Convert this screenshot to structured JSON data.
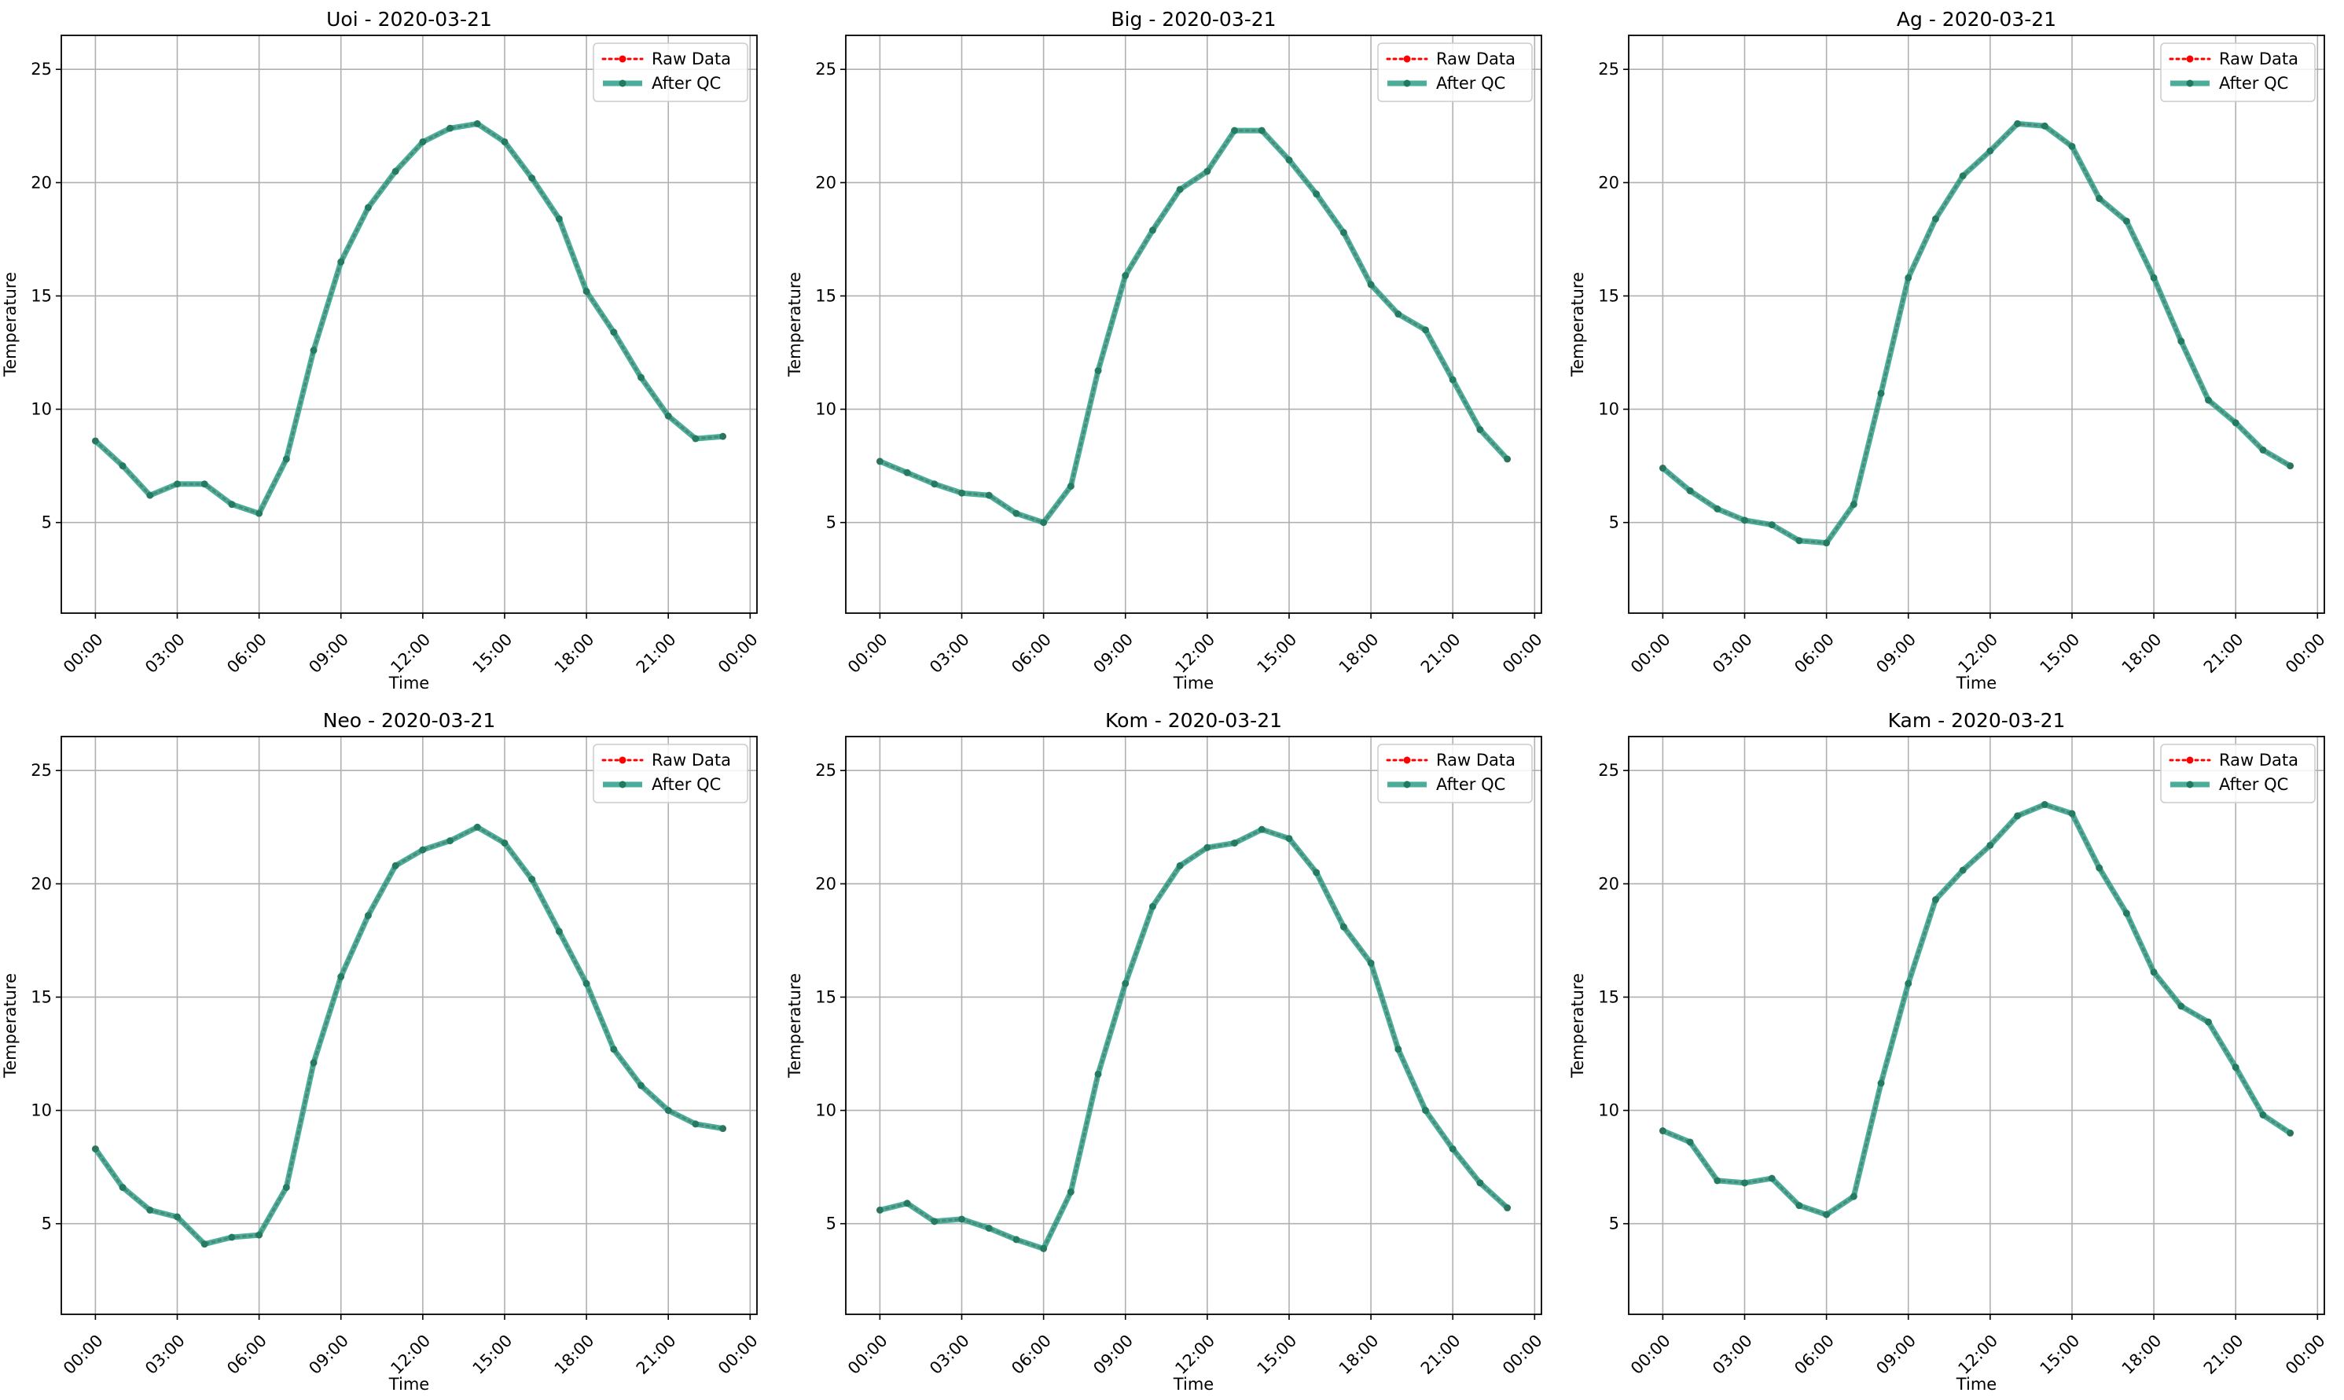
{
  "chart_data": [
    {
      "type": "line",
      "title": "Uoi - 2020-03-21",
      "xlabel": "Time",
      "ylabel": "Temperature",
      "date": "2020-03-21",
      "xticks": [
        "00:00",
        "03:00",
        "06:00",
        "09:00",
        "12:00",
        "15:00",
        "18:00",
        "21:00",
        "00:00"
      ],
      "xlim": [
        "2020-03-20T22:45",
        "2020-03-22T00:15"
      ],
      "yticks": [
        5,
        10,
        15,
        20,
        25
      ],
      "ylim": [
        1,
        26.5
      ],
      "grid": true,
      "legend_position": "top-right",
      "x": [
        "00:00",
        "01:00",
        "02:00",
        "03:00",
        "04:00",
        "05:00",
        "06:00",
        "07:00",
        "08:00",
        "09:00",
        "10:00",
        "11:00",
        "12:00",
        "13:00",
        "14:00",
        "15:00",
        "16:00",
        "17:00",
        "18:00",
        "19:00",
        "20:00",
        "21:00",
        "22:00",
        "23:00"
      ],
      "series": [
        {
          "name": "Raw Data",
          "color": "#ff0000",
          "style": "dotted",
          "values": [
            8.6,
            7.5,
            6.2,
            6.7,
            6.7,
            5.8,
            5.4,
            7.8,
            12.6,
            16.5,
            18.9,
            20.5,
            21.8,
            22.4,
            22.6,
            21.8,
            20.2,
            18.4,
            15.2,
            13.4,
            11.4,
            9.7,
            8.7,
            8.8
          ]
        },
        {
          "name": "After QC",
          "color": "#2ca089",
          "style": "solid",
          "values": [
            8.6,
            7.5,
            6.2,
            6.7,
            6.7,
            5.8,
            5.4,
            7.8,
            12.6,
            16.5,
            18.9,
            20.5,
            21.8,
            22.4,
            22.6,
            21.8,
            20.2,
            18.4,
            15.2,
            13.4,
            11.4,
            9.7,
            8.7,
            8.8
          ]
        }
      ]
    },
    {
      "type": "line",
      "title": "Big - 2020-03-21",
      "xlabel": "Time",
      "ylabel": "Temperature",
      "date": "2020-03-21",
      "xticks": [
        "00:00",
        "03:00",
        "06:00",
        "09:00",
        "12:00",
        "15:00",
        "18:00",
        "21:00",
        "00:00"
      ],
      "xlim": [
        "2020-03-20T22:45",
        "2020-03-22T00:15"
      ],
      "yticks": [
        5,
        10,
        15,
        20,
        25
      ],
      "ylim": [
        1,
        26.5
      ],
      "grid": true,
      "legend_position": "top-right",
      "x": [
        "00:00",
        "01:00",
        "02:00",
        "03:00",
        "04:00",
        "05:00",
        "06:00",
        "07:00",
        "08:00",
        "09:00",
        "10:00",
        "11:00",
        "12:00",
        "13:00",
        "14:00",
        "15:00",
        "16:00",
        "17:00",
        "18:00",
        "19:00",
        "20:00",
        "21:00",
        "22:00",
        "23:00"
      ],
      "series": [
        {
          "name": "Raw Data",
          "color": "#ff0000",
          "style": "dotted",
          "values": [
            7.7,
            7.2,
            6.7,
            6.3,
            6.2,
            5.4,
            5.0,
            6.6,
            11.7,
            15.9,
            17.9,
            19.7,
            20.5,
            22.3,
            22.3,
            21.0,
            19.5,
            17.8,
            15.5,
            14.2,
            13.5,
            11.3,
            9.1,
            7.8
          ]
        },
        {
          "name": "After QC",
          "color": "#2ca089",
          "style": "solid",
          "values": [
            7.7,
            7.2,
            6.7,
            6.3,
            6.2,
            5.4,
            5.0,
            6.6,
            11.7,
            15.9,
            17.9,
            19.7,
            20.5,
            22.3,
            22.3,
            21.0,
            19.5,
            17.8,
            15.5,
            14.2,
            13.5,
            11.3,
            9.1,
            7.8
          ]
        }
      ]
    },
    {
      "type": "line",
      "title": "Ag - 2020-03-21",
      "xlabel": "Time",
      "ylabel": "Temperature",
      "date": "2020-03-21",
      "xticks": [
        "00:00",
        "03:00",
        "06:00",
        "09:00",
        "12:00",
        "15:00",
        "18:00",
        "21:00",
        "00:00"
      ],
      "xlim": [
        "2020-03-20T22:45",
        "2020-03-22T00:15"
      ],
      "yticks": [
        5,
        10,
        15,
        20,
        25
      ],
      "ylim": [
        1,
        26.5
      ],
      "grid": true,
      "legend_position": "top-right",
      "x": [
        "00:00",
        "01:00",
        "02:00",
        "03:00",
        "04:00",
        "05:00",
        "06:00",
        "07:00",
        "08:00",
        "09:00",
        "10:00",
        "11:00",
        "12:00",
        "13:00",
        "14:00",
        "15:00",
        "16:00",
        "17:00",
        "18:00",
        "19:00",
        "20:00",
        "21:00",
        "22:00",
        "23:00"
      ],
      "series": [
        {
          "name": "Raw Data",
          "color": "#ff0000",
          "style": "dotted",
          "values": [
            7.4,
            6.4,
            5.6,
            5.1,
            4.9,
            4.2,
            4.1,
            5.8,
            10.7,
            15.8,
            18.4,
            20.3,
            21.4,
            22.6,
            22.5,
            21.6,
            19.3,
            18.3,
            15.8,
            13.0,
            10.4,
            9.4,
            8.2,
            7.5
          ]
        },
        {
          "name": "After QC",
          "color": "#2ca089",
          "style": "solid",
          "values": [
            7.4,
            6.4,
            5.6,
            5.1,
            4.9,
            4.2,
            4.1,
            5.8,
            10.7,
            15.8,
            18.4,
            20.3,
            21.4,
            22.6,
            22.5,
            21.6,
            19.3,
            18.3,
            15.8,
            13.0,
            10.4,
            9.4,
            8.2,
            7.5
          ]
        }
      ]
    },
    {
      "type": "line",
      "title": "Neo - 2020-03-21",
      "xlabel": "Time",
      "ylabel": "Temperature",
      "date": "2020-03-21",
      "xticks": [
        "00:00",
        "03:00",
        "06:00",
        "09:00",
        "12:00",
        "15:00",
        "18:00",
        "21:00",
        "00:00"
      ],
      "xlim": [
        "2020-03-20T22:45",
        "2020-03-22T00:15"
      ],
      "yticks": [
        5,
        10,
        15,
        20,
        25
      ],
      "ylim": [
        1,
        26.5
      ],
      "grid": true,
      "legend_position": "top-right",
      "x": [
        "00:00",
        "01:00",
        "02:00",
        "03:00",
        "04:00",
        "05:00",
        "06:00",
        "07:00",
        "08:00",
        "09:00",
        "10:00",
        "11:00",
        "12:00",
        "13:00",
        "14:00",
        "15:00",
        "16:00",
        "17:00",
        "18:00",
        "19:00",
        "20:00",
        "21:00",
        "22:00",
        "23:00"
      ],
      "series": [
        {
          "name": "Raw Data",
          "color": "#ff0000",
          "style": "dotted",
          "values": [
            8.3,
            6.6,
            5.6,
            5.3,
            4.1,
            4.4,
            4.5,
            6.6,
            12.1,
            15.9,
            18.6,
            20.8,
            21.5,
            21.9,
            22.5,
            21.8,
            20.2,
            17.9,
            15.6,
            12.7,
            11.1,
            10.0,
            9.4,
            9.2
          ]
        },
        {
          "name": "After QC",
          "color": "#2ca089",
          "style": "solid",
          "values": [
            8.3,
            6.6,
            5.6,
            5.3,
            4.1,
            4.4,
            4.5,
            6.6,
            12.1,
            15.9,
            18.6,
            20.8,
            21.5,
            21.9,
            22.5,
            21.8,
            20.2,
            17.9,
            15.6,
            12.7,
            11.1,
            10.0,
            9.4,
            9.2
          ]
        }
      ]
    },
    {
      "type": "line",
      "title": "Kom - 2020-03-21",
      "xlabel": "Time",
      "ylabel": "Temperature",
      "date": "2020-03-21",
      "xticks": [
        "00:00",
        "03:00",
        "06:00",
        "09:00",
        "12:00",
        "15:00",
        "18:00",
        "21:00",
        "00:00"
      ],
      "xlim": [
        "2020-03-20T22:45",
        "2020-03-22T00:15"
      ],
      "yticks": [
        5,
        10,
        15,
        20,
        25
      ],
      "ylim": [
        1,
        26.5
      ],
      "grid": true,
      "legend_position": "top-right",
      "x": [
        "00:00",
        "01:00",
        "02:00",
        "03:00",
        "04:00",
        "05:00",
        "06:00",
        "07:00",
        "08:00",
        "09:00",
        "10:00",
        "11:00",
        "12:00",
        "13:00",
        "14:00",
        "15:00",
        "16:00",
        "17:00",
        "18:00",
        "19:00",
        "20:00",
        "21:00",
        "22:00",
        "23:00"
      ],
      "series": [
        {
          "name": "Raw Data",
          "color": "#ff0000",
          "style": "dotted",
          "values": [
            5.6,
            5.9,
            5.1,
            5.2,
            4.8,
            4.3,
            3.9,
            6.4,
            11.6,
            15.6,
            19.0,
            20.8,
            21.6,
            21.8,
            22.4,
            22.0,
            20.5,
            18.1,
            16.5,
            12.7,
            10.0,
            8.3,
            6.8,
            5.7
          ]
        },
        {
          "name": "After QC",
          "color": "#2ca089",
          "style": "solid",
          "values": [
            5.6,
            5.9,
            5.1,
            5.2,
            4.8,
            4.3,
            3.9,
            6.4,
            11.6,
            15.6,
            19.0,
            20.8,
            21.6,
            21.8,
            22.4,
            22.0,
            20.5,
            18.1,
            16.5,
            12.7,
            10.0,
            8.3,
            6.8,
            5.7
          ]
        }
      ]
    },
    {
      "type": "line",
      "title": "Kam - 2020-03-21",
      "xlabel": "Time",
      "ylabel": "Temperature",
      "date": "2020-03-21",
      "xticks": [
        "00:00",
        "03:00",
        "06:00",
        "09:00",
        "12:00",
        "15:00",
        "18:00",
        "21:00",
        "00:00"
      ],
      "xlim": [
        "2020-03-20T22:45",
        "2020-03-22T00:15"
      ],
      "yticks": [
        5,
        10,
        15,
        20,
        25
      ],
      "ylim": [
        1,
        26.5
      ],
      "grid": true,
      "legend_position": "top-right",
      "x": [
        "00:00",
        "01:00",
        "02:00",
        "03:00",
        "04:00",
        "05:00",
        "06:00",
        "07:00",
        "08:00",
        "09:00",
        "10:00",
        "11:00",
        "12:00",
        "13:00",
        "14:00",
        "15:00",
        "16:00",
        "17:00",
        "18:00",
        "19:00",
        "20:00",
        "21:00",
        "22:00",
        "23:00"
      ],
      "series": [
        {
          "name": "Raw Data",
          "color": "#ff0000",
          "style": "dotted",
          "values": [
            9.1,
            8.6,
            6.9,
            6.8,
            7.0,
            5.8,
            5.4,
            6.2,
            11.2,
            15.6,
            19.3,
            20.6,
            21.7,
            23.0,
            23.5,
            23.1,
            20.7,
            18.7,
            16.1,
            14.6,
            13.9,
            11.9,
            9.8,
            9.0
          ]
        },
        {
          "name": "After QC",
          "color": "#2ca089",
          "style": "solid",
          "values": [
            9.1,
            8.6,
            6.9,
            6.8,
            7.0,
            5.8,
            5.4,
            6.2,
            11.2,
            15.6,
            19.3,
            20.6,
            21.7,
            23.0,
            23.5,
            23.1,
            20.7,
            18.7,
            16.1,
            14.6,
            13.9,
            11.9,
            9.8,
            9.0
          ]
        }
      ]
    }
  ]
}
